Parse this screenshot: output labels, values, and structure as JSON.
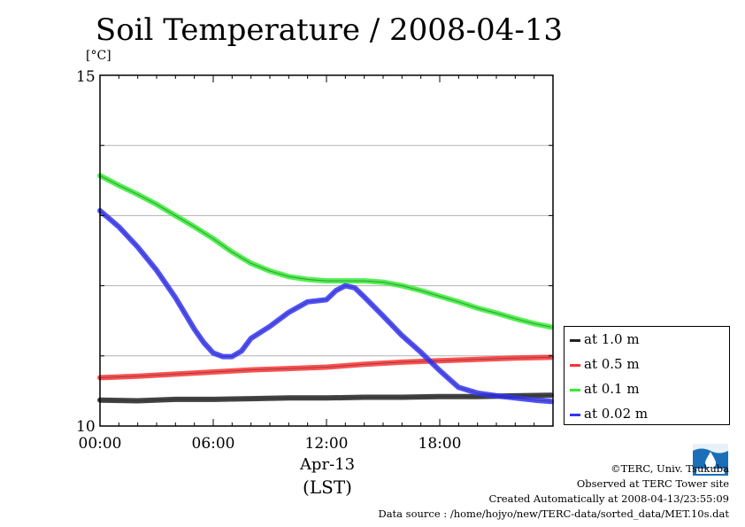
{
  "chart_data": {
    "type": "line",
    "title": "Soil Temperature / 2008-04-13",
    "ylabel": "[°C]",
    "ylim": [
      10,
      15
    ],
    "y_tick_labels": [
      "15",
      "10"
    ],
    "xlim": [
      "00:00",
      "24:00"
    ],
    "x_tick_labels": [
      "00:00",
      "06:00",
      "12:00",
      "18:00"
    ],
    "x_date_label": "Apr-13",
    "x_timezone_label": "(LST)",
    "grid": true,
    "legend_position": "right",
    "series": [
      {
        "name": "at 1.0 m",
        "color": "#222222",
        "x_hours": [
          0,
          2,
          4,
          6,
          8,
          10,
          12,
          14,
          16,
          18,
          20,
          22,
          23.9
        ],
        "values": [
          10.37,
          10.36,
          10.38,
          10.38,
          10.39,
          10.4,
          10.4,
          10.41,
          10.41,
          10.42,
          10.42,
          10.43,
          10.44
        ]
      },
      {
        "name": "at 0.5 m",
        "color": "#ff3333",
        "x_hours": [
          0,
          2,
          4,
          6,
          8,
          10,
          12,
          14,
          16,
          18,
          20,
          22,
          23.9
        ],
        "values": [
          10.69,
          10.71,
          10.74,
          10.77,
          10.8,
          10.82,
          10.84,
          10.88,
          10.91,
          10.93,
          10.95,
          10.97,
          10.98
        ]
      },
      {
        "name": "at 0.1 m",
        "color": "#33ee33",
        "x_hours": [
          0,
          1,
          2,
          3,
          4,
          5,
          6,
          7,
          8,
          9,
          10,
          11,
          12,
          13,
          14,
          15,
          16,
          17,
          18,
          19,
          20,
          21,
          22,
          23,
          23.9
        ],
        "values": [
          13.57,
          13.43,
          13.3,
          13.16,
          13.0,
          12.84,
          12.67,
          12.48,
          12.32,
          12.21,
          12.13,
          12.09,
          12.07,
          12.07,
          12.07,
          12.05,
          12.0,
          11.93,
          11.85,
          11.77,
          11.68,
          11.61,
          11.53,
          11.46,
          11.41
        ]
      },
      {
        "name": "at 0.02 m",
        "color": "#3333ff",
        "x_hours": [
          0,
          1,
          2,
          3,
          4,
          5,
          5.5,
          6,
          6.5,
          7,
          7.5,
          8,
          9,
          10,
          11,
          12,
          12.5,
          13,
          13.5,
          14,
          15,
          16,
          17,
          18,
          19,
          20,
          21,
          22,
          23,
          23.9
        ],
        "values": [
          13.07,
          12.84,
          12.55,
          12.22,
          11.83,
          11.38,
          11.19,
          11.04,
          10.99,
          10.99,
          11.07,
          11.25,
          11.42,
          11.62,
          11.77,
          11.8,
          11.93,
          12.0,
          11.97,
          11.84,
          11.57,
          11.29,
          11.05,
          10.79,
          10.55,
          10.47,
          10.43,
          10.4,
          10.37,
          10.35
        ]
      }
    ]
  },
  "credits": {
    "copyright": "©TERC, Univ. Tsukuba",
    "observed": "Observed at TERC Tower site",
    "created": "Created Automatically at 2008-04-13/23:55:09",
    "source": "Data source : /home/hojyo/new/TERC-data/sorted_data/MET.10s.dat"
  },
  "logo": {
    "color": "#1a6fb8"
  }
}
